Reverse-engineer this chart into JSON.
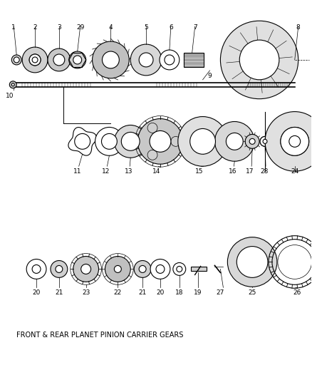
{
  "title": "",
  "caption": "FRONT & REAR PLANET PINION CARRIER GEARS",
  "bg_color": "#ffffff",
  "line_color": "#000000",
  "fig_width": 4.38,
  "fig_height": 5.33,
  "dpi": 100,
  "parts": {
    "row1_labels": [
      "1",
      "2",
      "3",
      "29",
      "4",
      "5",
      "6",
      "7",
      "8",
      "9",
      "10"
    ],
    "row2_labels": [
      "11",
      "12",
      "13",
      "14",
      "15",
      "16",
      "17",
      "28",
      "24"
    ],
    "row3_labels": [
      "20",
      "21",
      "23",
      "22",
      "21",
      "20",
      "18",
      "19",
      "27",
      "25",
      "26"
    ]
  }
}
